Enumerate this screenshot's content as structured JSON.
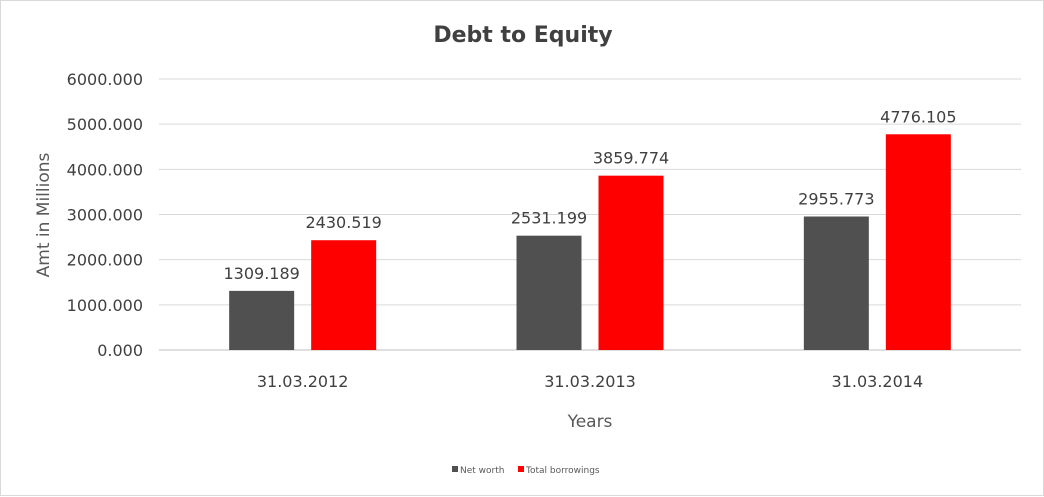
{
  "chart_data": {
    "type": "bar",
    "title": "Debt to Equity",
    "xlabel": "Years",
    "ylabel": "Amt in Millions",
    "categories": [
      "31.03.2012",
      "31.03.2013",
      "31.03.2014"
    ],
    "series": [
      {
        "name": "Net worth",
        "color": "#505050",
        "values": [
          1309.189,
          2531.199,
          2955.773
        ]
      },
      {
        "name": "Total borrowings",
        "color": "#ff0000",
        "values": [
          2430.519,
          3859.774,
          4776.105
        ]
      }
    ],
    "ylim": [
      0,
      6000
    ],
    "yticks": [
      "0.000",
      "1000.000",
      "2000.000",
      "3000.000",
      "4000.000",
      "5000.000",
      "6000.000"
    ],
    "grid": true,
    "legend": "bottom"
  }
}
